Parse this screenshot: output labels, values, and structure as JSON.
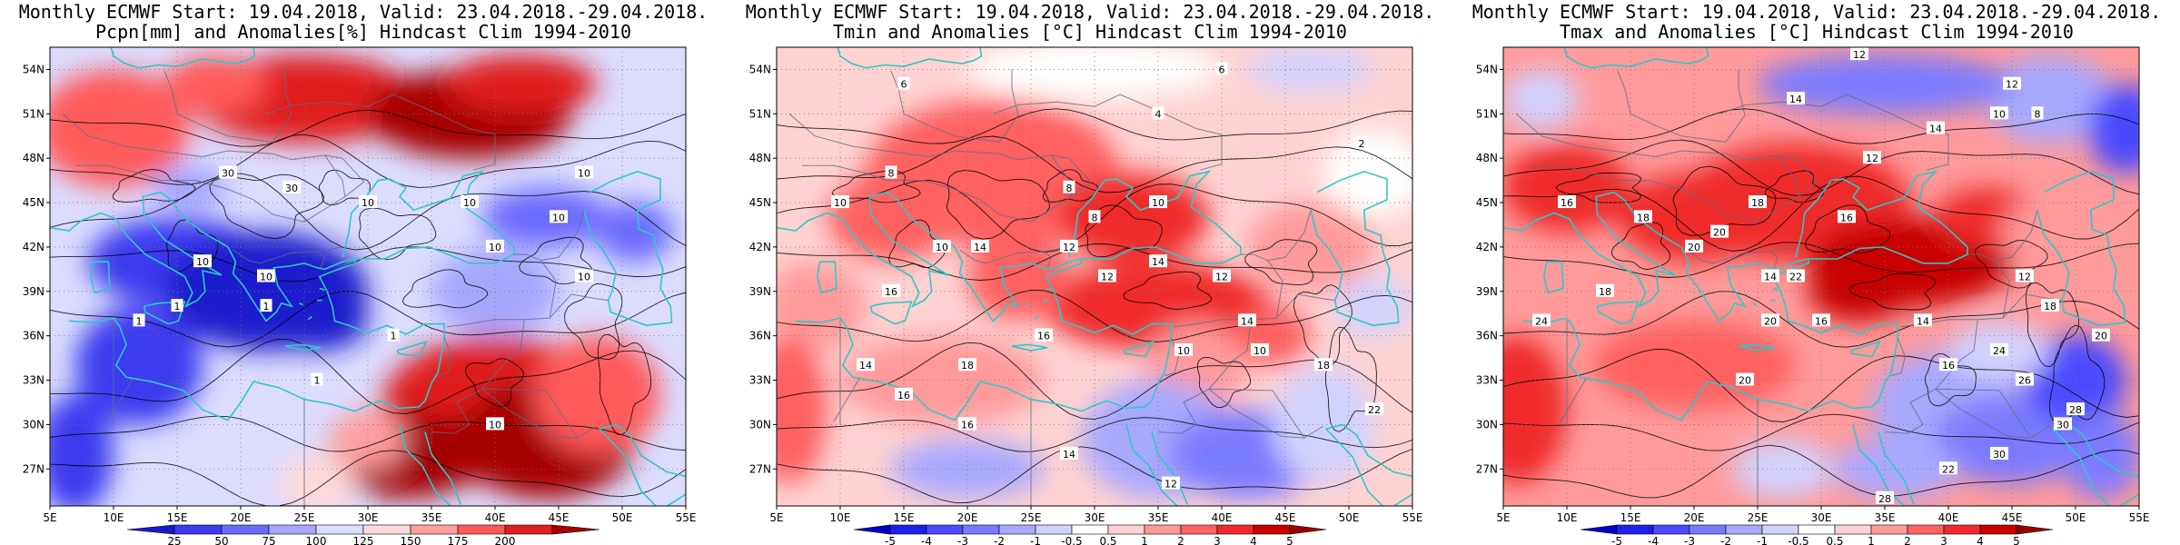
{
  "panels": [
    {
      "id": "precip",
      "title_line1": "Monthly ECMWF Start: 19.04.2018, Valid: 23.04.2018.-29.04.2018.",
      "title_line2": "Pcpn[mm] and Anomalies[%] Hindcast Clim 1994-2010",
      "colorbar": {
        "labels": [
          "25",
          "50",
          "75",
          "100",
          "125",
          "150",
          "175",
          "200"
        ],
        "colors": [
          "#1a1acc",
          "#3b3bf0",
          "#6b6bff",
          "#a6a6ff",
          "#dcdcff",
          "#ffd9d9",
          "#ff9e9e",
          "#ff5a5a",
          "#e01e1e",
          "#a60000"
        ]
      },
      "contour_labels": [
        "10",
        "10",
        "10",
        "10",
        "10",
        "10",
        "10",
        "10",
        "30",
        "30",
        "1",
        "1",
        "1",
        "1",
        "1",
        "10"
      ]
    },
    {
      "id": "tmin",
      "title_line1": "Monthly ECMWF Start: 19.04.2018, Valid: 23.04.2018.-29.04.2018.",
      "title_line2": "Tmin and Anomalies [°C] Hindcast Clim 1994-2010",
      "colorbar": {
        "labels": [
          "-5",
          "-4",
          "-3",
          "-2",
          "-1",
          "-0.5",
          "0.5",
          "1",
          "2",
          "3",
          "4",
          "5"
        ],
        "colors": [
          "#0000c8",
          "#1f1fe6",
          "#4a4aff",
          "#7a7aff",
          "#a8a8ff",
          "#d2d2ff",
          "#ffffff",
          "#ffd2d2",
          "#ff9a9a",
          "#ff6060",
          "#f02a2a",
          "#c80000",
          "#960000"
        ]
      },
      "contour_labels": [
        "6",
        "4",
        "2",
        "6",
        "8",
        "8",
        "10",
        "10",
        "8",
        "10",
        "12",
        "14",
        "16",
        "12",
        "10",
        "14",
        "18",
        "14",
        "16",
        "16",
        "14",
        "12",
        "10",
        "22",
        "18",
        "14",
        "16",
        "12"
      ]
    },
    {
      "id": "tmax",
      "title_line1": "Monthly ECMWF Start: 19.04.2018, Valid: 23.04.2018.-29.04.2018.",
      "title_line2": "Tmax and Anomalies [°C] Hindcast Clim 1994-2010",
      "colorbar": {
        "labels": [
          "-5",
          "-4",
          "-3",
          "-2",
          "-1",
          "-0.5",
          "0.5",
          "1",
          "2",
          "3",
          "4",
          "5"
        ],
        "colors": [
          "#0000c8",
          "#1f1fe6",
          "#4a4aff",
          "#7a7aff",
          "#a8a8ff",
          "#d2d2ff",
          "#ffffff",
          "#ffd2d2",
          "#ff9a9a",
          "#ff6060",
          "#f02a2a",
          "#c80000",
          "#960000"
        ]
      },
      "contour_labels": [
        "12",
        "12",
        "8",
        "14",
        "12",
        "10",
        "14",
        "16",
        "18",
        "20",
        "18",
        "16",
        "14",
        "20",
        "22",
        "18",
        "20",
        "16",
        "14",
        "12",
        "18",
        "24",
        "20",
        "16",
        "26",
        "28",
        "30",
        "22",
        "28",
        "30",
        "24",
        "20"
      ]
    }
  ],
  "axes": {
    "lat_labels": [
      "54N",
      "51N",
      "48N",
      "45N",
      "42N",
      "39N",
      "36N",
      "33N",
      "30N",
      "27N"
    ],
    "lon_labels": [
      "5E",
      "10E",
      "15E",
      "20E",
      "25E",
      "30E",
      "35E",
      "40E",
      "45E",
      "50E",
      "55E"
    ]
  }
}
